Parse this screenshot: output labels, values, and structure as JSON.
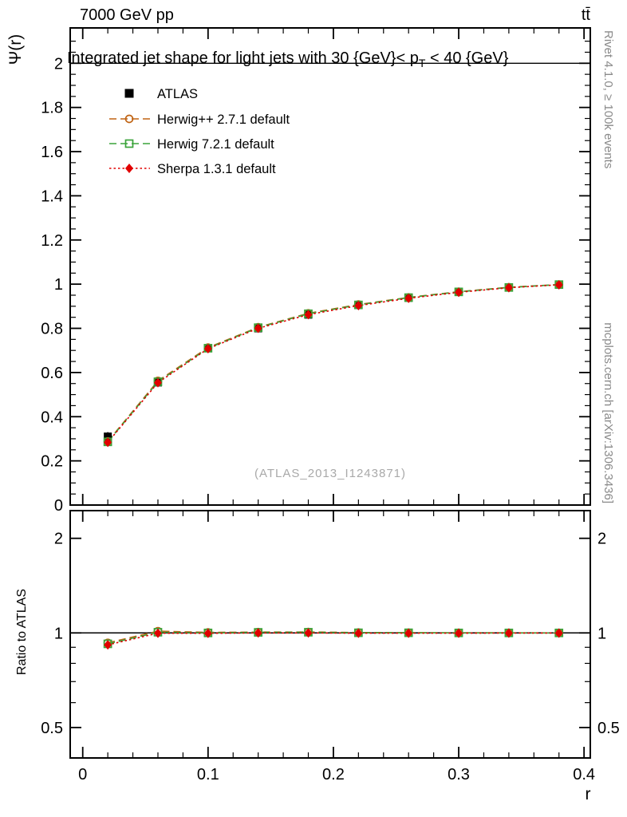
{
  "header": {
    "left": "7000 GeV pp",
    "right": "tt̄"
  },
  "axis_titles": {
    "y_main": "Ψ(r)",
    "y_ratio": "Ratio to ATLAS",
    "x": "r"
  },
  "plot_title": {
    "pre": "Integrated jet shape for light jets with 30 {GeV}< p",
    "sub": "T",
    "post": " < 40 {GeV}"
  },
  "watermark": "(ATLAS_2013_I1243871)",
  "side_notes": {
    "top": "Rivet 4.1.0, ≥ 100k events",
    "bottom": "mcplots.cern.ch [arXiv:1306.3436]"
  },
  "legend": [
    {
      "label": "ATLAS",
      "marker": "filled-square",
      "line": "none",
      "color": "#000000"
    },
    {
      "label": "Herwig++ 2.7.1 default",
      "marker": "open-circle",
      "line": "dashed",
      "color": "#c06414"
    },
    {
      "label": "Herwig 7.2.1 default",
      "marker": "open-square",
      "line": "dashed",
      "color": "#3aa33a"
    },
    {
      "label": "Sherpa 1.3.1 default",
      "marker": "filled-diamond",
      "line": "dotted",
      "color": "#e10000"
    }
  ],
  "chart_data": [
    {
      "type": "line",
      "panel": "main",
      "title": "Integrated jet shape for light jets with 30 {GeV} < pT < 40 {GeV}",
      "xlabel": "r",
      "ylabel": "Ψ(r)",
      "xlim": [
        -0.01,
        0.405
      ],
      "ylim": [
        0,
        2.16
      ],
      "x_major_ticks": [
        0,
        0.1,
        0.2,
        0.3,
        0.4
      ],
      "x_minor_step": 0.02,
      "y_major_ticks": [
        0,
        0.2,
        0.4,
        0.6,
        0.8,
        1,
        1.2,
        1.4,
        1.6,
        1.8,
        2
      ],
      "y_minor_step": 0.05,
      "reference_line_y": 2.0,
      "x": [
        0.02,
        0.06,
        0.1,
        0.14,
        0.18,
        0.22,
        0.26,
        0.3,
        0.34,
        0.38
      ],
      "series": [
        {
          "name": "ATLAS",
          "values": [
            0.31,
            0.555,
            0.71,
            0.8,
            0.862,
            0.905,
            0.938,
            0.965,
            0.985,
            0.998
          ],
          "errors": [
            0.02,
            0.012,
            0.01,
            0.008,
            0.007,
            0.006,
            0.005,
            0.004,
            0.003,
            0.002
          ]
        },
        {
          "name": "Herwig++ 2.7.1 default",
          "values": [
            0.288,
            0.562,
            0.713,
            0.805,
            0.868,
            0.908,
            0.94,
            0.966,
            0.986,
            0.998
          ],
          "errors": [
            0.005,
            0.004,
            0.003,
            0.003,
            0.002,
            0.002,
            0.002,
            0.002,
            0.001,
            0.001
          ]
        },
        {
          "name": "Herwig 7.2.1 default",
          "values": [
            0.286,
            0.558,
            0.71,
            0.803,
            0.866,
            0.906,
            0.939,
            0.965,
            0.985,
            0.998
          ],
          "errors": [
            0.005,
            0.004,
            0.003,
            0.003,
            0.002,
            0.002,
            0.002,
            0.002,
            0.001,
            0.001
          ]
        },
        {
          "name": "Sherpa 1.3.1 default",
          "values": [
            0.284,
            0.554,
            0.708,
            0.8,
            0.862,
            0.903,
            0.936,
            0.963,
            0.984,
            0.997
          ],
          "errors": [
            0.006,
            0.004,
            0.003,
            0.003,
            0.002,
            0.002,
            0.002,
            0.002,
            0.001,
            0.001
          ]
        }
      ]
    },
    {
      "type": "line",
      "panel": "ratio",
      "ylabel": "Ratio to ATLAS",
      "yscale": "log",
      "ylim": [
        0.4,
        2.45
      ],
      "y_major_ticks": [
        0.5,
        1,
        2
      ],
      "y_minor_ticks": [
        0.4,
        0.6,
        0.7,
        0.8,
        0.9
      ],
      "reference_line_y": 1.0,
      "x": [
        0.02,
        0.06,
        0.1,
        0.14,
        0.18,
        0.22,
        0.26,
        0.3,
        0.34,
        0.38
      ],
      "series": [
        {
          "name": "Herwig++ 2.7.1 default",
          "values": [
            0.93,
            1.013,
            1.004,
            1.006,
            1.007,
            1.003,
            1.002,
            1.001,
            1.001,
            1.0
          ],
          "errors": [
            0.018,
            0.01,
            0.008,
            0.007,
            0.006,
            0.005,
            0.005,
            0.004,
            0.004,
            0.003
          ]
        },
        {
          "name": "Herwig 7.2.1 default",
          "values": [
            0.923,
            1.005,
            1.0,
            1.004,
            1.005,
            1.001,
            1.001,
            1.0,
            1.0,
            1.0
          ],
          "errors": [
            0.018,
            0.01,
            0.008,
            0.007,
            0.006,
            0.005,
            0.005,
            0.004,
            0.004,
            0.003
          ]
        },
        {
          "name": "Sherpa 1.3.1 default",
          "values": [
            0.916,
            0.998,
            0.997,
            1.0,
            1.0,
            0.998,
            0.998,
            0.998,
            0.999,
            0.999
          ],
          "errors": [
            0.02,
            0.01,
            0.008,
            0.007,
            0.006,
            0.005,
            0.005,
            0.004,
            0.004,
            0.003
          ]
        }
      ]
    }
  ]
}
